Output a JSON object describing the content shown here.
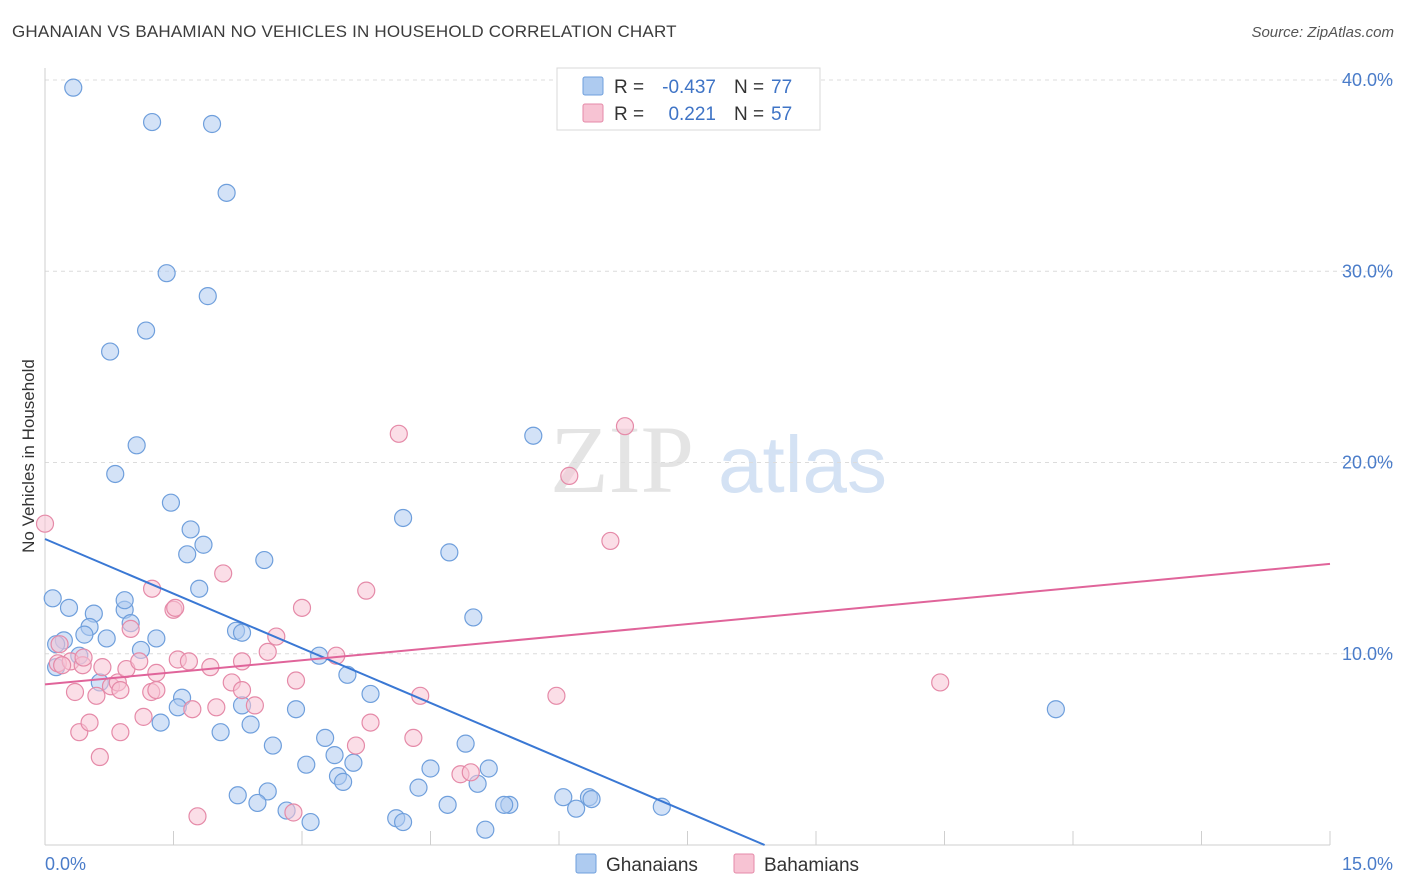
{
  "header": {
    "title": "GHANAIAN VS BAHAMIAN NO VEHICLES IN HOUSEHOLD CORRELATION CHART",
    "source": "Source: ZipAtlas.com"
  },
  "watermark": {
    "zip": "ZIP",
    "atlas": "atlas"
  },
  "colors": {
    "blue_fill": "#aecbf0",
    "blue_stroke": "#6f9fdc",
    "blue_line": "#3a78d4",
    "pink_fill": "#f7c3d3",
    "pink_stroke": "#e58aa8",
    "pink_line": "#e0649a",
    "grid": "#dcdcdc",
    "axis_text": "#4a7cc9"
  },
  "legend": {
    "rows": [
      {
        "r_label": "R =",
        "r_value": "-0.437",
        "n_label": "N =",
        "n_value": "77",
        "series": "Ghanaians"
      },
      {
        "r_label": "R =",
        "r_value": "0.221",
        "n_label": "N =",
        "n_value": "57",
        "series": "Bahamians"
      }
    ]
  },
  "bottom_legend": {
    "items": [
      "Ghanaians",
      "Bahamians"
    ]
  },
  "chart_data": {
    "type": "scatter",
    "title": "GHANAIAN VS BAHAMIAN NO VEHICLES IN HOUSEHOLD CORRELATION CHART",
    "xlabel": "",
    "ylabel": "No Vehicles in Household",
    "xlim": [
      0,
      15
    ],
    "ylim": [
      0,
      40
    ],
    "x_tick_labels": [
      "0.0%",
      "15.0%"
    ],
    "y_ticks": [
      10,
      20,
      30,
      40
    ],
    "y_tick_labels": [
      "10.0%",
      "20.0%",
      "30.0%",
      "40.0%"
    ],
    "grid": true,
    "legend_position": "top-center",
    "series": [
      {
        "name": "Ghanaians",
        "r": -0.437,
        "n": 77,
        "trend": {
          "x": [
            0.0,
            8.4
          ],
          "y": [
            16.0,
            0.0
          ]
        },
        "points": [
          [
            0.33,
            39.6
          ],
          [
            1.25,
            37.8
          ],
          [
            1.95,
            37.7
          ],
          [
            2.12,
            34.1
          ],
          [
            1.42,
            29.9
          ],
          [
            1.9,
            28.7
          ],
          [
            1.18,
            26.9
          ],
          [
            0.76,
            25.8
          ],
          [
            1.07,
            20.9
          ],
          [
            0.82,
            19.4
          ],
          [
            5.7,
            21.4
          ],
          [
            1.47,
            17.9
          ],
          [
            4.18,
            17.1
          ],
          [
            1.7,
            16.5
          ],
          [
            1.85,
            15.7
          ],
          [
            1.66,
            15.2
          ],
          [
            2.56,
            14.9
          ],
          [
            4.72,
            15.3
          ],
          [
            0.09,
            12.9
          ],
          [
            0.28,
            12.4
          ],
          [
            0.57,
            12.1
          ],
          [
            0.93,
            12.3
          ],
          [
            0.93,
            12.8
          ],
          [
            1.8,
            13.4
          ],
          [
            0.52,
            11.4
          ],
          [
            1.0,
            11.6
          ],
          [
            0.22,
            10.7
          ],
          [
            0.46,
            11.0
          ],
          [
            0.72,
            10.8
          ],
          [
            1.3,
            10.8
          ],
          [
            2.23,
            11.2
          ],
          [
            2.3,
            11.1
          ],
          [
            5.0,
            11.9
          ],
          [
            0.13,
            10.5
          ],
          [
            0.4,
            9.9
          ],
          [
            1.12,
            10.2
          ],
          [
            3.2,
            9.9
          ],
          [
            3.53,
            8.9
          ],
          [
            0.13,
            9.3
          ],
          [
            0.64,
            8.5
          ],
          [
            1.6,
            7.7
          ],
          [
            1.55,
            7.2
          ],
          [
            2.3,
            7.3
          ],
          [
            2.93,
            7.1
          ],
          [
            3.8,
            7.9
          ],
          [
            1.35,
            6.4
          ],
          [
            2.05,
            5.9
          ],
          [
            2.4,
            6.3
          ],
          [
            3.27,
            5.6
          ],
          [
            2.66,
            5.2
          ],
          [
            4.91,
            5.3
          ],
          [
            3.05,
            4.2
          ],
          [
            3.38,
            4.7
          ],
          [
            3.6,
            4.3
          ],
          [
            3.42,
            3.6
          ],
          [
            3.48,
            3.3
          ],
          [
            4.5,
            4.0
          ],
          [
            5.18,
            4.0
          ],
          [
            4.36,
            3.0
          ],
          [
            5.05,
            3.2
          ],
          [
            2.25,
            2.6
          ],
          [
            2.6,
            2.8
          ],
          [
            2.48,
            2.2
          ],
          [
            2.82,
            1.8
          ],
          [
            3.1,
            1.2
          ],
          [
            4.1,
            1.4
          ],
          [
            4.18,
            1.2
          ],
          [
            4.7,
            2.1
          ],
          [
            5.42,
            2.1
          ],
          [
            5.36,
            2.1
          ],
          [
            5.14,
            0.8
          ],
          [
            6.05,
            2.5
          ],
          [
            6.2,
            1.9
          ],
          [
            6.35,
            2.5
          ],
          [
            6.38,
            2.4
          ],
          [
            7.2,
            2.0
          ],
          [
            11.8,
            7.1
          ]
        ]
      },
      {
        "name": "Bahamians",
        "r": 0.221,
        "n": 57,
        "trend": {
          "x": [
            0.0,
            15.0
          ],
          "y": [
            8.4,
            14.7
          ]
        },
        "points": [
          [
            0.0,
            16.8
          ],
          [
            0.15,
            9.5
          ],
          [
            0.3,
            9.6
          ],
          [
            0.17,
            10.5
          ],
          [
            0.44,
            9.4
          ],
          [
            0.45,
            9.8
          ],
          [
            0.35,
            8.0
          ],
          [
            0.6,
            7.8
          ],
          [
            0.67,
            9.3
          ],
          [
            0.77,
            8.3
          ],
          [
            0.85,
            8.5
          ],
          [
            0.88,
            8.1
          ],
          [
            0.95,
            9.2
          ],
          [
            1.0,
            11.3
          ],
          [
            1.1,
            9.6
          ],
          [
            1.24,
            8.0
          ],
          [
            1.3,
            8.1
          ],
          [
            1.3,
            9.0
          ],
          [
            1.5,
            12.3
          ],
          [
            1.55,
            9.7
          ],
          [
            1.68,
            9.6
          ],
          [
            1.52,
            12.4
          ],
          [
            1.25,
            13.4
          ],
          [
            2.08,
            14.2
          ],
          [
            1.93,
            9.3
          ],
          [
            2.18,
            8.5
          ],
          [
            2.3,
            8.1
          ],
          [
            2.3,
            9.6
          ],
          [
            2.45,
            7.3
          ],
          [
            2.6,
            10.1
          ],
          [
            2.7,
            10.9
          ],
          [
            2.93,
            8.6
          ],
          [
            3.0,
            12.4
          ],
          [
            3.75,
            13.3
          ],
          [
            0.4,
            5.9
          ],
          [
            0.52,
            6.4
          ],
          [
            0.88,
            5.9
          ],
          [
            1.15,
            6.7
          ],
          [
            1.72,
            7.1
          ],
          [
            2.0,
            7.2
          ],
          [
            3.8,
            6.4
          ],
          [
            4.3,
            5.6
          ],
          [
            4.38,
            7.8
          ],
          [
            3.63,
            5.2
          ],
          [
            0.64,
            4.6
          ],
          [
            4.85,
            3.7
          ],
          [
            4.97,
            3.8
          ],
          [
            5.97,
            7.8
          ],
          [
            6.12,
            19.3
          ],
          [
            6.6,
            15.9
          ],
          [
            6.77,
            21.9
          ],
          [
            4.13,
            21.5
          ],
          [
            10.45,
            8.5
          ],
          [
            1.78,
            1.5
          ],
          [
            2.9,
            1.7
          ],
          [
            3.4,
            9.9
          ],
          [
            0.2,
            9.4
          ]
        ]
      }
    ]
  }
}
